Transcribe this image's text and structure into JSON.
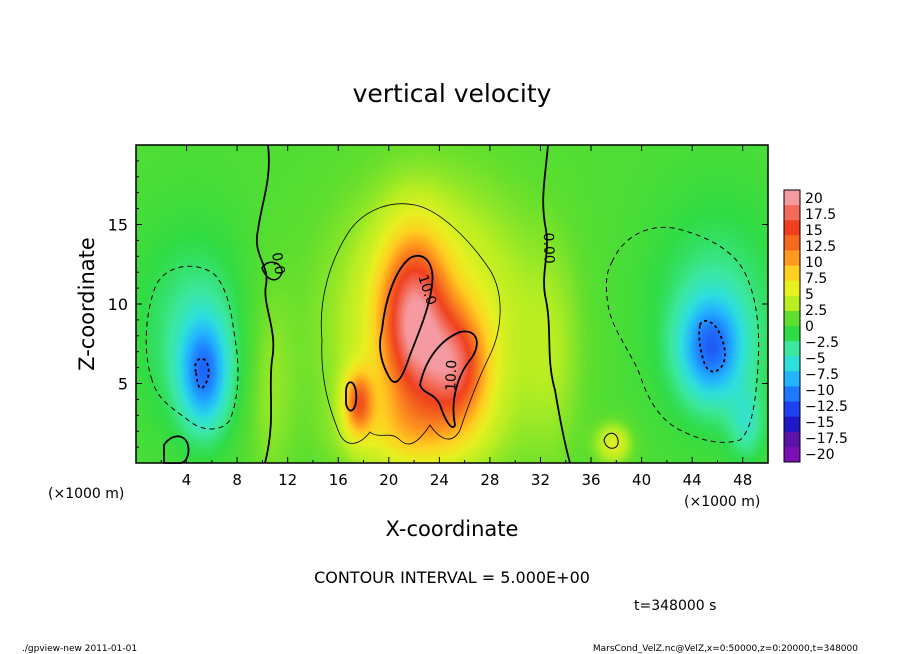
{
  "chart_data": {
    "type": "heatmap",
    "title": "vertical velocity",
    "xlabel": "X-coordinate",
    "ylabel": "Z-coordinate",
    "x_unit_left": "(×1000 m)",
    "x_unit_right": "(×1000 m)",
    "xlim": [
      0,
      50
    ],
    "ylim": [
      0,
      20
    ],
    "x_ticks": [
      4,
      8,
      12,
      16,
      20,
      24,
      28,
      32,
      36,
      40,
      44,
      48
    ],
    "y_ticks": [
      5,
      10,
      15
    ],
    "contour_interval_text": "CONTOUR INTERVAL = 5.000E+00",
    "time_text": "t=348000 s",
    "contour_labels": [
      {
        "text": "10.0",
        "x": 22.7,
        "y": 10.8,
        "rotate": 72
      },
      {
        "text": "10.0",
        "x": 25.3,
        "y": 5.5,
        "rotate": -88
      },
      {
        "text": "0.00",
        "x": 32.3,
        "y": 13.5,
        "rotate": 88
      },
      {
        "text": "0.0",
        "x": 10.9,
        "y": 12.5,
        "rotate": 80
      }
    ],
    "features": [
      {
        "x": 22.0,
        "y": 9.0,
        "sx": 1.8,
        "sy": 3.6,
        "amp": 14
      },
      {
        "x": 25.3,
        "y": 6.0,
        "sx": 1.7,
        "sy": 2.4,
        "amp": 11
      },
      {
        "x": 17.6,
        "y": 3.8,
        "sx": 0.8,
        "sy": 1.4,
        "amp": 10
      },
      {
        "x": 23.5,
        "y": 8.5,
        "sx": 5.5,
        "sy": 6.0,
        "amp": 6.5
      },
      {
        "x": 22.0,
        "y": 2.0,
        "sx": 3.5,
        "sy": 1.8,
        "amp": 4
      },
      {
        "x": 5.4,
        "y": 5.6,
        "sx": 1.4,
        "sy": 2.5,
        "amp": -9
      },
      {
        "x": 4.5,
        "y": 8.5,
        "sx": 3.2,
        "sy": 4.5,
        "amp": -3.5
      },
      {
        "x": 45.5,
        "y": 7.2,
        "sx": 1.8,
        "sy": 2.3,
        "amp": -9
      },
      {
        "x": 46.0,
        "y": 9.5,
        "sx": 3.8,
        "sy": 5.0,
        "amp": -3.5
      },
      {
        "x": 48.3,
        "y": 2.5,
        "sx": 1.0,
        "sy": 1.6,
        "amp": -4
      },
      {
        "x": 37.8,
        "y": 1.2,
        "sx": 1.0,
        "sy": 0.9,
        "amp": 5
      },
      {
        "x": 10.5,
        "y": 5.0,
        "sx": 1.4,
        "sy": 5.0,
        "amp": 2.2
      },
      {
        "x": 33.0,
        "y": 6.5,
        "sx": 1.6,
        "sy": 5.0,
        "amp": 1.8
      }
    ],
    "colorbar": {
      "labels": [
        "20",
        "17.5",
        "15",
        "12.5",
        "10",
        "7.5",
        "5",
        "2.5",
        "0",
        "−2.5",
        "−5",
        "−7.5",
        "−10",
        "−12.5",
        "−15",
        "−17.5",
        "−20"
      ],
      "colors": [
        "#f59aa0",
        "#f36a5a",
        "#f0401f",
        "#f56a1e",
        "#ff9a1e",
        "#ffd020",
        "#e8f020",
        "#b8ee22",
        "#5ede2e",
        "#30dc44",
        "#3ce8a0",
        "#2ee0dc",
        "#22b4ff",
        "#1e78ff",
        "#1e40f0",
        "#1e18c8",
        "#5a14a8",
        "#7a10b4"
      ]
    }
  },
  "footer": {
    "left": "./gpview-new   2011-01-01",
    "right": "MarsCond_VelZ.nc@VelZ,x=0:50000,z=0:20000,t=348000"
  }
}
